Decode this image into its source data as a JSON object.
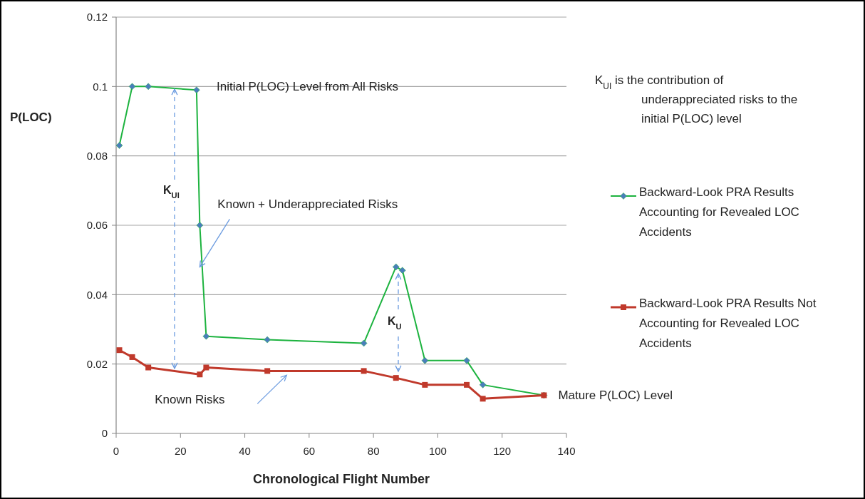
{
  "chart_data": {
    "type": "line",
    "xlabel": "Chronological Flight Number",
    "ylabel": "P(LOC)",
    "xlim": [
      0,
      140
    ],
    "xticks": [
      0,
      20,
      40,
      60,
      80,
      100,
      120,
      140
    ],
    "ylim": [
      0,
      0.12
    ],
    "yticks": [
      0,
      0.02,
      0.04,
      0.06,
      0.08,
      0.1,
      0.12
    ],
    "grid": "y",
    "legend": "right",
    "series": [
      {
        "name": "Backward-Look PRA Results Accounting for Revealed LOC Accidents",
        "color": "#1db33f",
        "marker": "diamond",
        "x": [
          1,
          5,
          10,
          25,
          26,
          28,
          47,
          77,
          87,
          89,
          96,
          109,
          114,
          133
        ],
        "values": [
          0.083,
          0.1,
          0.1,
          0.099,
          0.06,
          0.028,
          0.027,
          0.026,
          0.048,
          0.047,
          0.021,
          0.021,
          0.014,
          0.011
        ]
      },
      {
        "name": "Backward-Look PRA Results Not Accounting for Revealed LOC Accidents",
        "color": "#c0392b",
        "marker": "square",
        "x": [
          1,
          5,
          10,
          26,
          28,
          47,
          77,
          87,
          96,
          109,
          114,
          133
        ],
        "values": [
          0.024,
          0.022,
          0.019,
          0.017,
          0.019,
          0.018,
          0.018,
          0.016,
          0.014,
          0.014,
          0.01,
          0.011
        ]
      }
    ],
    "annotations": [
      "Initial P(LOC) Level from All Risks",
      {
        "text": "Known + Underappreciated Risks",
        "x": 26,
        "y": 0.048
      },
      "Known Risks",
      {
        "text": "Mature P(LOC) Level",
        "x": 133,
        "y": 0.011
      },
      "K$_{UI}$",
      "K$_{U}$",
      "K$_{UI}$ is the contribution of underappreciated risks to the initial P(LOC) level"
    ]
  }
}
